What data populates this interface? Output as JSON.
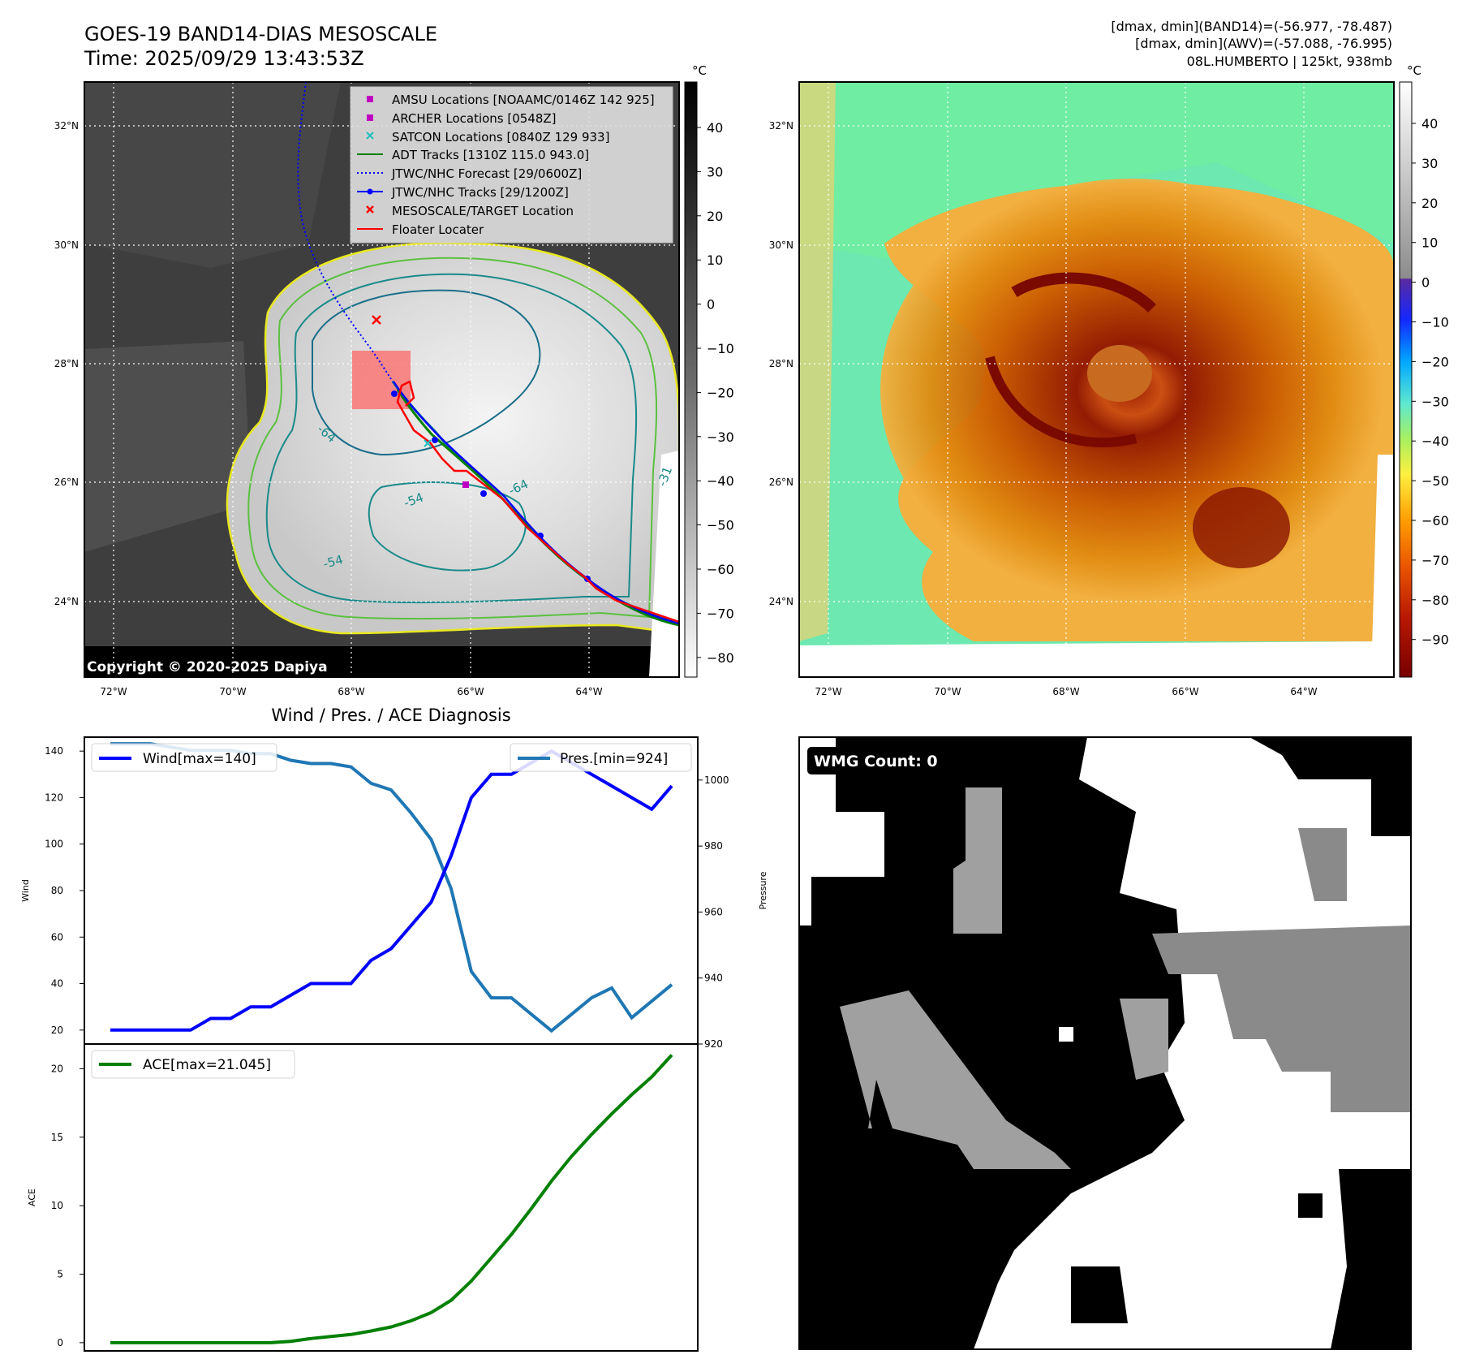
{
  "header": {
    "title": "GOES-19 BAND14-DIAS MESOSCALE",
    "time": "Time: 2025/09/29 13:43:53Z",
    "stats_line1": "[dmax, dmin](BAND14)=(-56.977, -78.487)",
    "stats_line2": "[dmax, dmin](AWV)=(-57.088, -76.995)",
    "storm": "08L.HUMBERTO | 125kt, 938mb"
  },
  "maps": {
    "lat_labels": [
      "32°N",
      "30°N",
      "28°N",
      "26°N",
      "24°N"
    ],
    "lon_labels": [
      "72°W",
      "70°W",
      "68°W",
      "66°W",
      "64°W"
    ],
    "copyright": "Copyright © 2020-2025 Dapiya",
    "contour_labels": [
      "-64",
      "-54",
      "-64",
      "-54",
      "-31"
    ],
    "legend": [
      {
        "label": "AMSU Locations [NOAAMC/0146Z 142 925]",
        "color": "#c000c0",
        "marker": "square"
      },
      {
        "label": "ARCHER Locations [0548Z]",
        "color": "#c000c0",
        "marker": "square"
      },
      {
        "label": "SATCON Locations [0840Z 129 933]",
        "color": "#1fbfbf",
        "marker": "x"
      },
      {
        "label": "ADT Tracks [1310Z 115.0 943.0]",
        "color": "#008000",
        "marker": "line"
      },
      {
        "label": "JTWC/NHC Forecast [29/0600Z]",
        "color": "#0000ff",
        "marker": "dotted"
      },
      {
        "label": "JTWC/NHC Tracks [29/1200Z]",
        "color": "#0000ff",
        "marker": "line-dot"
      },
      {
        "label": "MESOSCALE/TARGET Location",
        "color": "#ff0000",
        "marker": "x"
      },
      {
        "label": "Floater Locater",
        "color": "#ff0000",
        "marker": "line"
      }
    ],
    "colorbar1": {
      "unit": "°C",
      "ticks": [
        "40",
        "30",
        "20",
        "10",
        "0",
        "−10",
        "−20",
        "−30",
        "−40",
        "−50",
        "−60",
        "−70",
        "−80"
      ]
    },
    "colorbar2": {
      "unit": "°C",
      "ticks": [
        "40",
        "30",
        "20",
        "10",
        "0",
        "−10",
        "−20",
        "−30",
        "−40",
        "−50",
        "−60",
        "−70",
        "−80",
        "−90"
      ]
    }
  },
  "wmg": {
    "label": "WMG Count: 0"
  },
  "chart_data": [
    {
      "type": "line",
      "title": "Wind / Pres. / ACE Diagnosis",
      "ylabel": "Wind",
      "ylabel_right": "Pressure",
      "ylim": [
        14,
        146
      ],
      "ylim_right": [
        920,
        1013
      ],
      "yticks": [
        20,
        40,
        60,
        80,
        100,
        120,
        140
      ],
      "yticks_right": [
        920,
        940,
        960,
        980,
        1000
      ],
      "series": [
        {
          "name": "Wind[max=140]",
          "axis": "left",
          "color": "#0000ff",
          "values": [
            20,
            20,
            20,
            20,
            20,
            25,
            25,
            30,
            30,
            35,
            40,
            40,
            40,
            50,
            55,
            65,
            75,
            95,
            120,
            130,
            130,
            135,
            140,
            135,
            130,
            125,
            120,
            115,
            125
          ]
        },
        {
          "name": "Pres.[min=924]",
          "axis": "right",
          "color": "#1f77b4",
          "values": [
            1011,
            1011,
            1011,
            1010,
            1009,
            1009,
            1009,
            1008,
            1008,
            1006,
            1005,
            1005,
            1004,
            999,
            997,
            990,
            982,
            967,
            942,
            934,
            934,
            929,
            924,
            929,
            934,
            937,
            928,
            933,
            938
          ]
        }
      ]
    },
    {
      "type": "line",
      "ylabel": "ACE",
      "ylim": [
        -0.6,
        21.8
      ],
      "yticks": [
        0,
        5,
        10,
        15,
        20
      ],
      "series": [
        {
          "name": "ACE[max=21.045]",
          "color": "#008000",
          "values": [
            0,
            0,
            0,
            0,
            0,
            0,
            0,
            0,
            0,
            0.1,
            0.3,
            0.45,
            0.6,
            0.85,
            1.15,
            1.6,
            2.2,
            3.1,
            4.5,
            6.2,
            7.9,
            9.8,
            11.8,
            13.6,
            15.2,
            16.7,
            18.1,
            19.4,
            21.0
          ]
        }
      ]
    }
  ]
}
